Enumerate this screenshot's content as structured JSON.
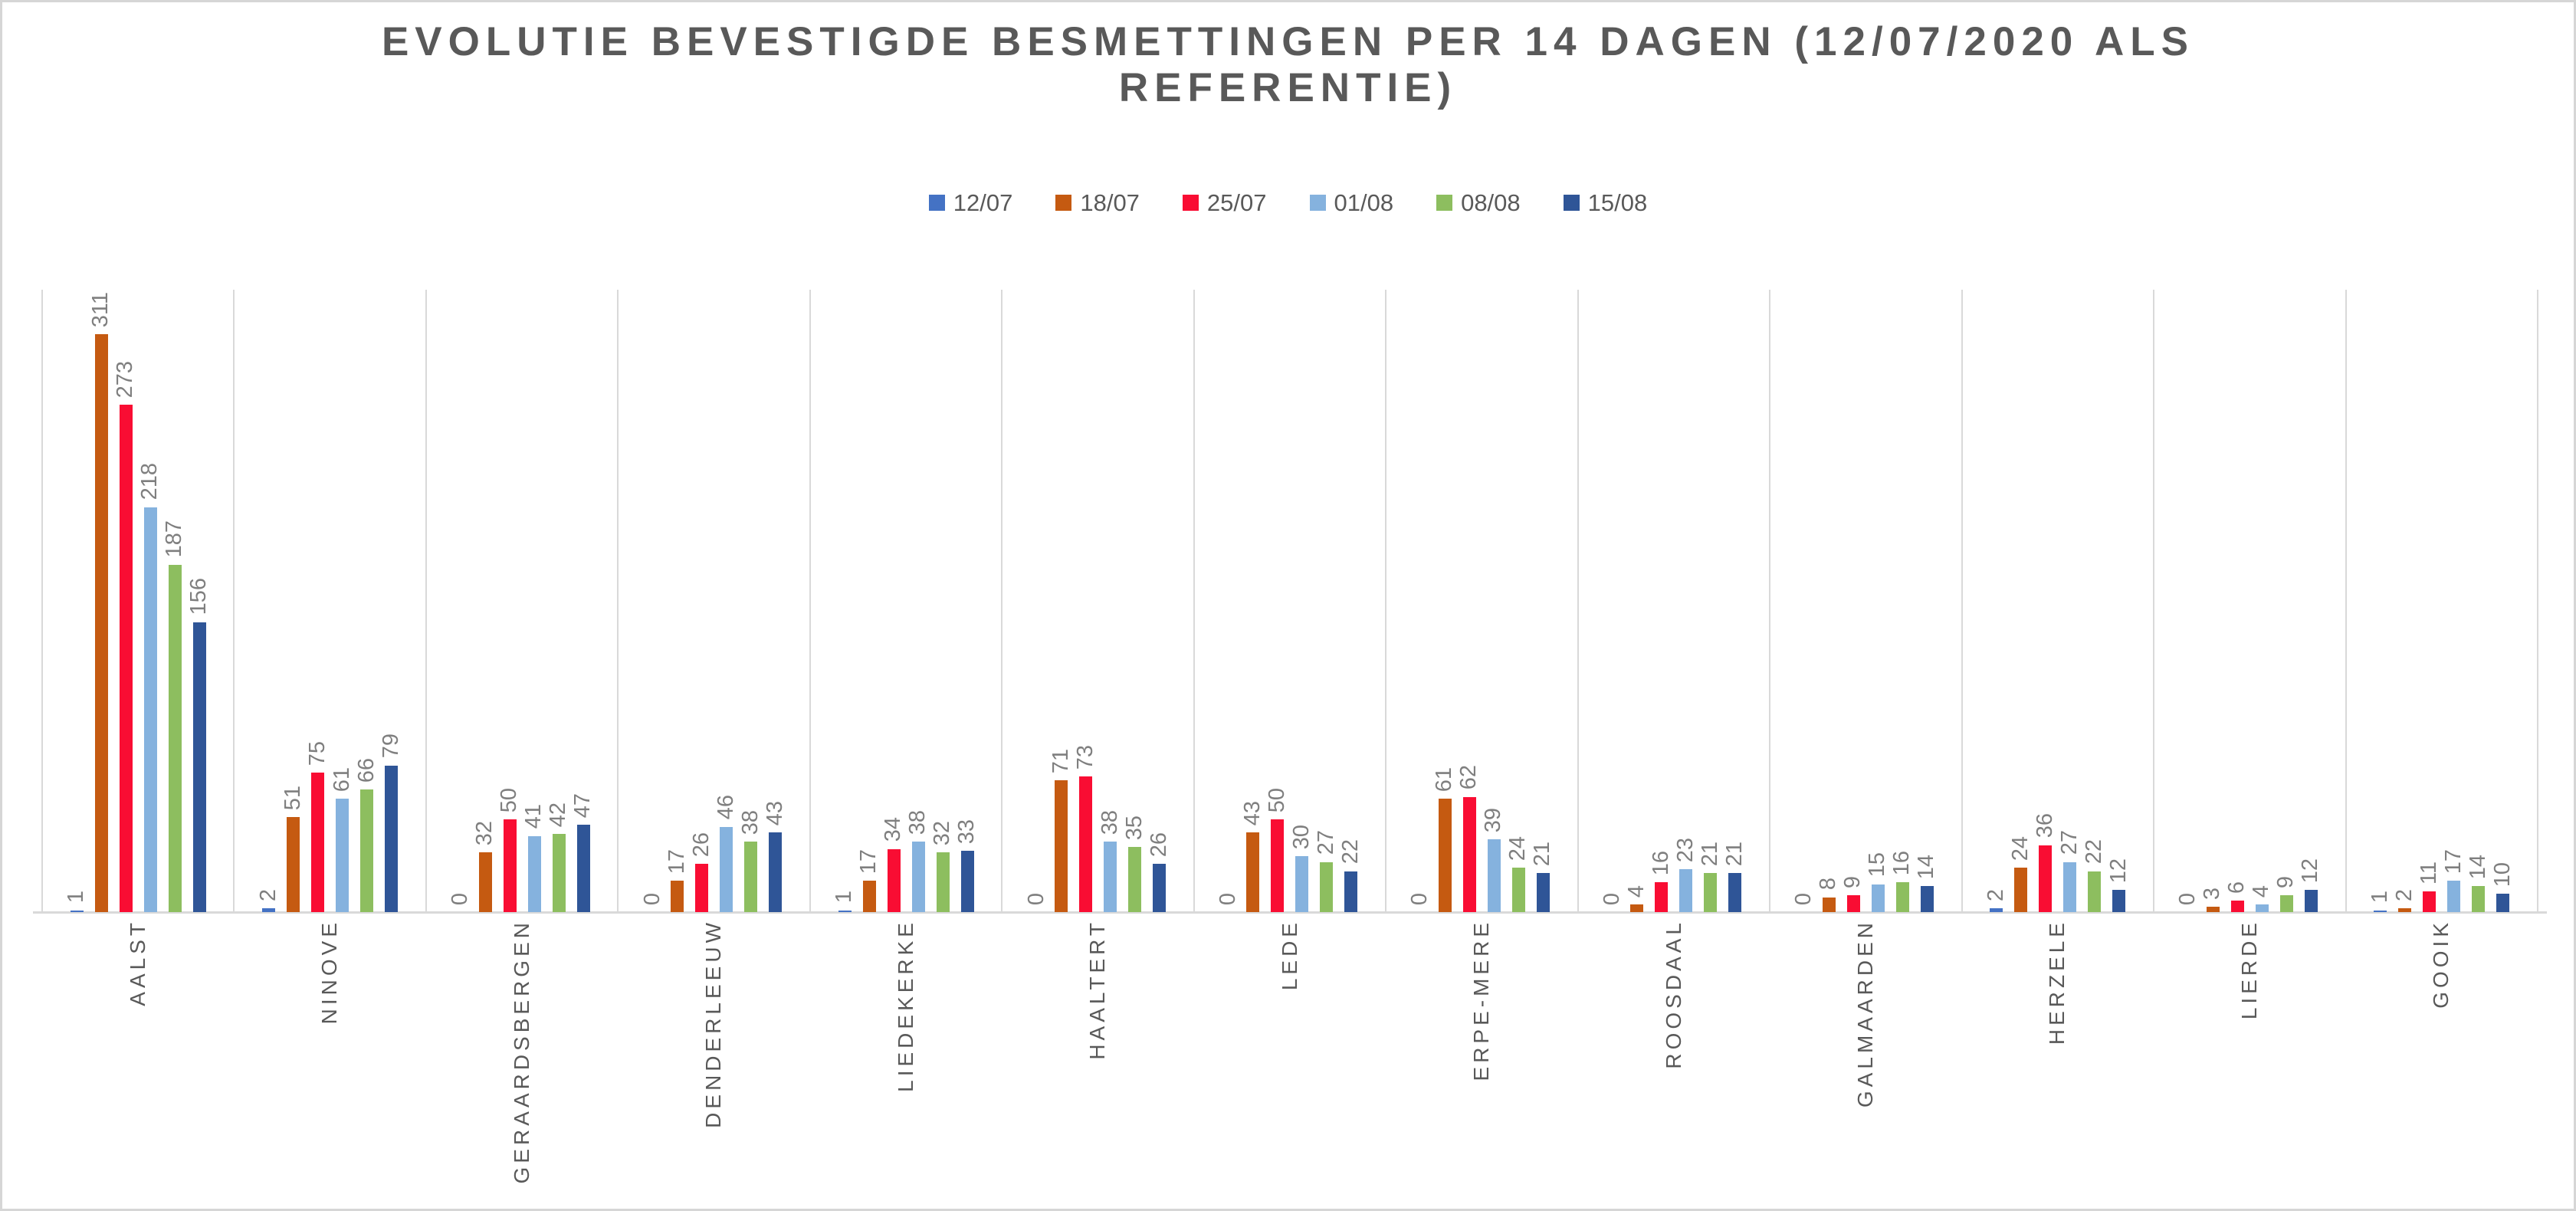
{
  "title": {
    "text": "EVOLUTIE BEVESTIGDE BESMETTINGEN PER 14 DAGEN (12/07/2020 ALS REFERENTIE)",
    "lines": [
      "EVOLUTIE BEVESTIGDE BESMETTINGEN PER 14 DAGEN (12/07/2020 ALS",
      "REFERENTIE)"
    ]
  },
  "chart_data": {
    "type": "bar",
    "title": "EVOLUTIE BEVESTIGDE BESMETTINGEN PER 14 DAGEN (12/07/2020 ALS REFERENTIE)",
    "categories": [
      "AALST",
      "NINOVE",
      "GERAARDSBERGEN",
      "DENDERLEEUW",
      "LIEDEKERKE",
      "HAALTERT",
      "LEDE",
      "ERPE-MERE",
      "ROOSDAAL",
      "GALMAARDEN",
      "HERZELE",
      "LIERDE",
      "GOOIK"
    ],
    "series": [
      {
        "name": "12/07",
        "color": "#4472C4",
        "values": [
          1,
          2,
          0,
          0,
          1,
          0,
          0,
          0,
          0,
          0,
          2,
          0,
          1
        ]
      },
      {
        "name": "18/07",
        "color": "#C55A11",
        "values": [
          311,
          51,
          32,
          17,
          17,
          71,
          43,
          61,
          4,
          8,
          24,
          3,
          2
        ]
      },
      {
        "name": "25/07",
        "color": "#F90D33",
        "values": [
          273,
          75,
          50,
          26,
          34,
          73,
          50,
          62,
          16,
          9,
          36,
          6,
          11
        ]
      },
      {
        "name": "01/08",
        "color": "#85B2DE",
        "values": [
          218,
          61,
          41,
          46,
          38,
          38,
          30,
          39,
          23,
          15,
          27,
          4,
          17
        ]
      },
      {
        "name": "08/08",
        "color": "#8DBE5F",
        "values": [
          187,
          66,
          42,
          38,
          32,
          35,
          27,
          24,
          21,
          16,
          22,
          9,
          14
        ]
      },
      {
        "name": "15/08",
        "color": "#2F5597",
        "values": [
          156,
          79,
          47,
          43,
          33,
          26,
          22,
          21,
          21,
          14,
          12,
          12,
          10
        ]
      }
    ],
    "xlabel": "",
    "ylabel": "",
    "ylim": [
      0,
      335
    ],
    "grid": "vertical category separators only",
    "legend_position": "top",
    "data_labels": "rotated 90deg above each bar",
    "category_labels": "rotated 90deg below axis"
  },
  "styles": {
    "title_color": "#595959",
    "legend_text_color": "#595959",
    "value_label_color": "#7f7f7f",
    "category_label_color": "#595959",
    "gridline_color": "#d9d9d9",
    "axis_line_color": "#d9d9d9",
    "canvas_border_color": "#d6d6d6",
    "background": "#ffffff"
  }
}
